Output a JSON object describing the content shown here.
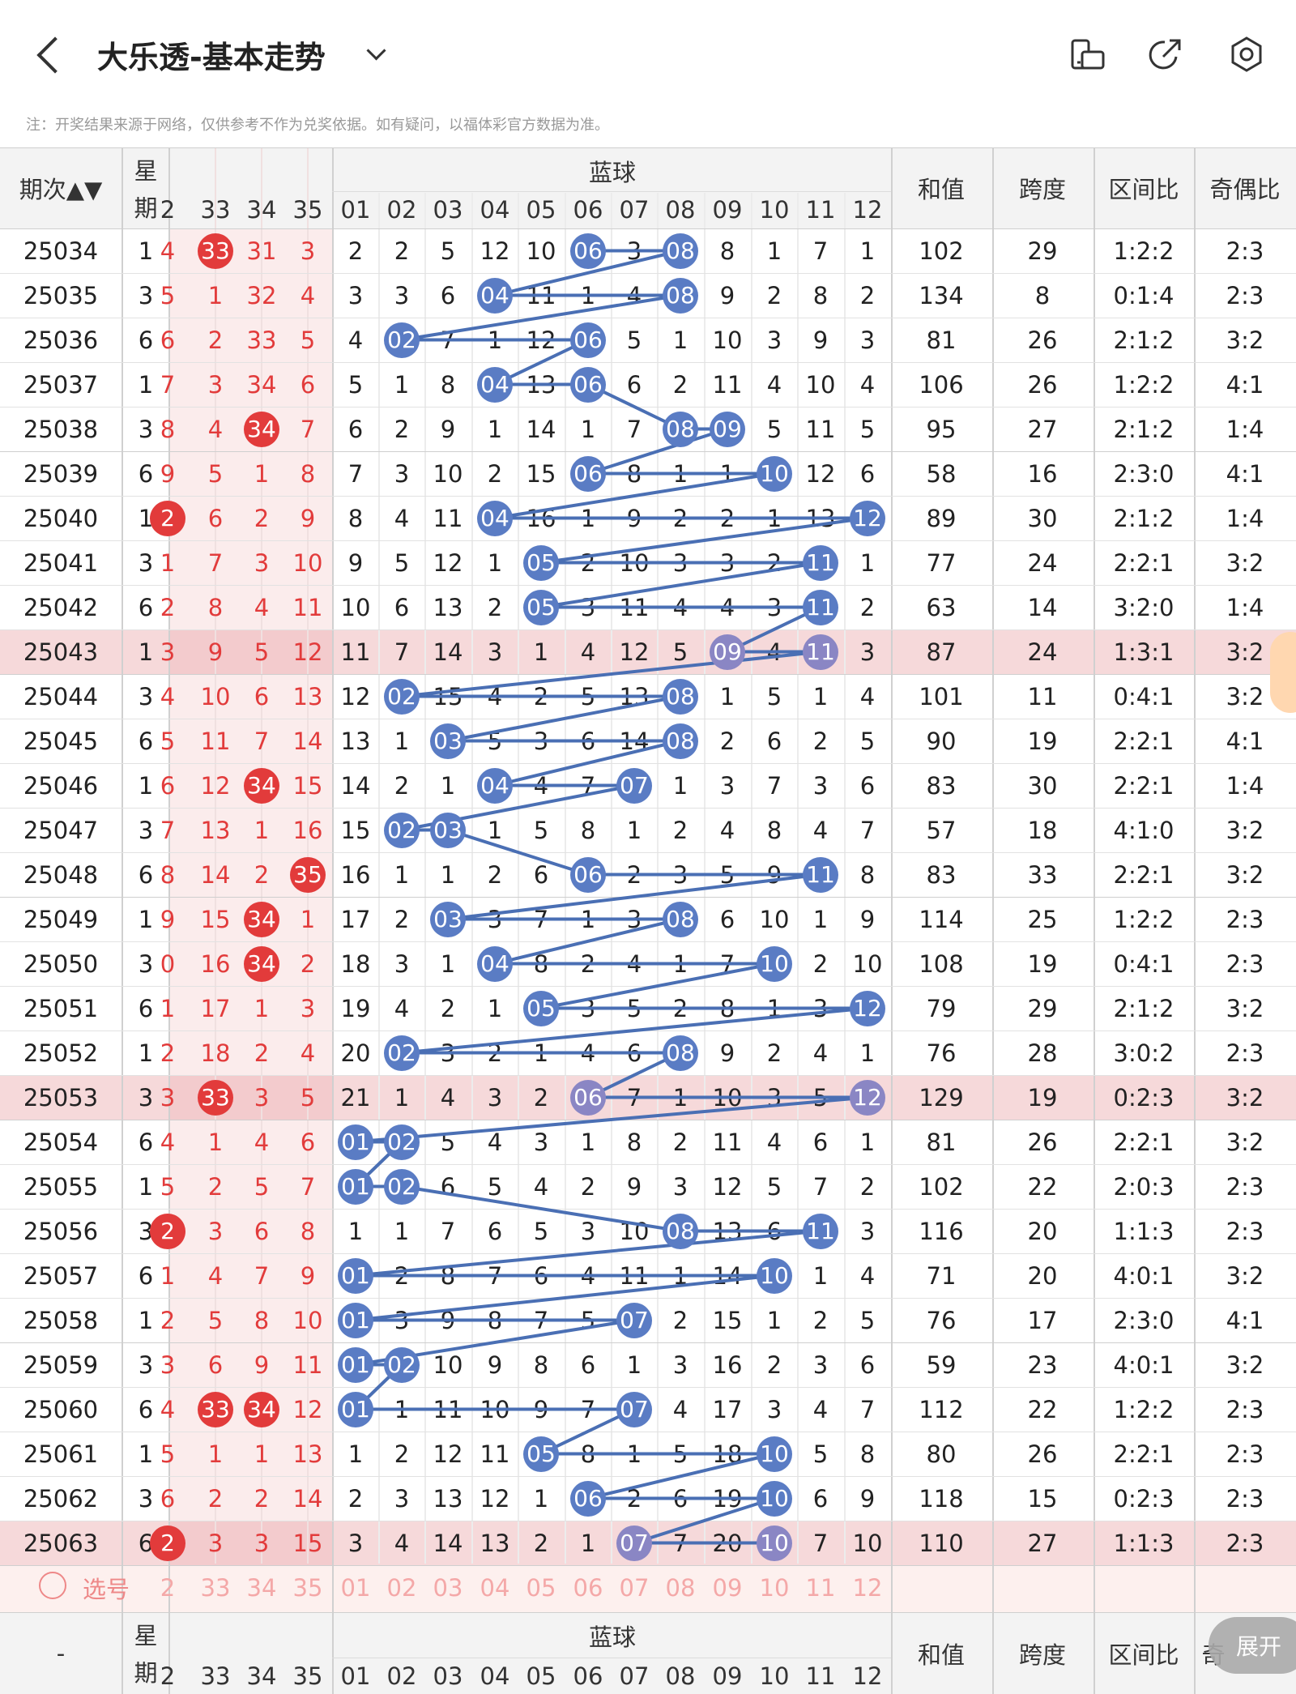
{
  "header": {
    "title": "大乐透-基本走势",
    "back_icon": "back-arrow-icon",
    "dropdown_icon": "chevron-down-icon",
    "icons": [
      "screen-rotate-icon",
      "share-icon",
      "settings-hexagon-icon"
    ]
  },
  "note": "注：开奖结果来源于网络，仅供参考不作为兑奖依据。如有疑问，以福体彩官方数据为准。",
  "table": {
    "col_period": "期次▲▼",
    "col_week_top": "星",
    "col_week_bottom": "期",
    "front_cols": [
      "2",
      "33",
      "34",
      "35"
    ],
    "blue_group": "蓝球",
    "blue_cols": [
      "01",
      "02",
      "03",
      "04",
      "05",
      "06",
      "07",
      "08",
      "09",
      "10",
      "11",
      "12"
    ],
    "stat_cols": [
      "和值",
      "跨度",
      "区间比",
      "奇偶比"
    ],
    "rows": [
      {
        "p": "25034",
        "w": "1",
        "f": [
          "4",
          "33",
          "31",
          "3"
        ],
        "fb": [
          1
        ],
        "b": [
          "2",
          "2",
          "5",
          "12",
          "10",
          "06",
          "3",
          "08",
          "8",
          "1",
          "7",
          "1"
        ],
        "bb": [
          6,
          8
        ],
        "s": [
          "102",
          "29",
          "1:2:2",
          "2:3"
        ],
        "hl": false
      },
      {
        "p": "25035",
        "w": "3",
        "f": [
          "5",
          "1",
          "32",
          "4"
        ],
        "fb": [],
        "b": [
          "3",
          "3",
          "6",
          "04",
          "11",
          "1",
          "4",
          "08",
          "9",
          "2",
          "8",
          "2"
        ],
        "bb": [
          4,
          8
        ],
        "s": [
          "134",
          "8",
          "0:1:4",
          "2:3"
        ],
        "hl": false
      },
      {
        "p": "25036",
        "w": "6",
        "f": [
          "6",
          "2",
          "33",
          "5"
        ],
        "fb": [],
        "b": [
          "4",
          "02",
          "7",
          "1",
          "12",
          "06",
          "5",
          "1",
          "10",
          "3",
          "9",
          "3"
        ],
        "bb": [
          2,
          6
        ],
        "s": [
          "81",
          "26",
          "2:1:2",
          "3:2"
        ],
        "hl": false
      },
      {
        "p": "25037",
        "w": "1",
        "f": [
          "7",
          "3",
          "34",
          "6"
        ],
        "fb": [],
        "b": [
          "5",
          "1",
          "8",
          "04",
          "13",
          "06",
          "6",
          "2",
          "11",
          "4",
          "10",
          "4"
        ],
        "bb": [
          4,
          6
        ],
        "s": [
          "106",
          "26",
          "1:2:2",
          "4:1"
        ],
        "hl": false
      },
      {
        "p": "25038",
        "w": "3",
        "f": [
          "8",
          "4",
          "34",
          "7"
        ],
        "fb": [
          2
        ],
        "b": [
          "6",
          "2",
          "9",
          "1",
          "14",
          "1",
          "7",
          "08",
          "09",
          "5",
          "11",
          "5"
        ],
        "bb": [
          8,
          9
        ],
        "s": [
          "95",
          "27",
          "2:1:2",
          "1:4"
        ],
        "hl": false
      },
      {
        "p": "25039",
        "w": "6",
        "f": [
          "9",
          "5",
          "1",
          "8"
        ],
        "fb": [],
        "b": [
          "7",
          "3",
          "10",
          "2",
          "15",
          "06",
          "8",
          "1",
          "1",
          "10",
          "12",
          "6"
        ],
        "bb": [
          6,
          10
        ],
        "s": [
          "58",
          "16",
          "2:3:0",
          "4:1"
        ],
        "hl": false
      },
      {
        "p": "25040",
        "w": "1",
        "f": [
          "2",
          "6",
          "2",
          "9"
        ],
        "fb": [
          0
        ],
        "b": [
          "8",
          "4",
          "11",
          "04",
          "16",
          "1",
          "9",
          "2",
          "2",
          "1",
          "13",
          "12"
        ],
        "bb": [
          4,
          12
        ],
        "s": [
          "89",
          "30",
          "2:1:2",
          "1:4"
        ],
        "hl": false
      },
      {
        "p": "25041",
        "w": "3",
        "f": [
          "1",
          "7",
          "3",
          "10"
        ],
        "fb": [],
        "b": [
          "9",
          "5",
          "12",
          "1",
          "05",
          "2",
          "10",
          "3",
          "3",
          "2",
          "11",
          "1"
        ],
        "bb": [
          5,
          11
        ],
        "s": [
          "77",
          "24",
          "2:2:1",
          "3:2"
        ],
        "hl": false
      },
      {
        "p": "25042",
        "w": "6",
        "f": [
          "2",
          "8",
          "4",
          "11"
        ],
        "fb": [],
        "b": [
          "10",
          "6",
          "13",
          "2",
          "05",
          "3",
          "11",
          "4",
          "4",
          "3",
          "11",
          "2"
        ],
        "bb": [
          5,
          11
        ],
        "s": [
          "63",
          "14",
          "3:2:0",
          "1:4"
        ],
        "hl": false
      },
      {
        "p": "25043",
        "w": "1",
        "f": [
          "3",
          "9",
          "5",
          "12"
        ],
        "fb": [],
        "b": [
          "11",
          "7",
          "14",
          "3",
          "1",
          "4",
          "12",
          "5",
          "09",
          "4",
          "11",
          "3"
        ],
        "bb": [
          9,
          11
        ],
        "s": [
          "87",
          "24",
          "1:3:1",
          "3:2"
        ],
        "hl": true
      },
      {
        "p": "25044",
        "w": "3",
        "f": [
          "4",
          "10",
          "6",
          "13"
        ],
        "fb": [],
        "b": [
          "12",
          "02",
          "15",
          "4",
          "2",
          "5",
          "13",
          "08",
          "1",
          "5",
          "1",
          "4"
        ],
        "bb": [
          2,
          8
        ],
        "s": [
          "101",
          "11",
          "0:4:1",
          "3:2"
        ],
        "hl": false
      },
      {
        "p": "25045",
        "w": "6",
        "f": [
          "5",
          "11",
          "7",
          "14"
        ],
        "fb": [],
        "b": [
          "13",
          "1",
          "03",
          "5",
          "3",
          "6",
          "14",
          "08",
          "2",
          "6",
          "2",
          "5"
        ],
        "bb": [
          3,
          8
        ],
        "s": [
          "90",
          "19",
          "2:2:1",
          "4:1"
        ],
        "hl": false
      },
      {
        "p": "25046",
        "w": "1",
        "f": [
          "6",
          "12",
          "34",
          "15"
        ],
        "fb": [
          2
        ],
        "b": [
          "14",
          "2",
          "1",
          "04",
          "4",
          "7",
          "07",
          "1",
          "3",
          "7",
          "3",
          "6"
        ],
        "bb": [
          4,
          7
        ],
        "s": [
          "83",
          "30",
          "2:2:1",
          "1:4"
        ],
        "hl": false
      },
      {
        "p": "25047",
        "w": "3",
        "f": [
          "7",
          "13",
          "1",
          "16"
        ],
        "fb": [],
        "b": [
          "15",
          "02",
          "03",
          "1",
          "5",
          "8",
          "1",
          "2",
          "4",
          "8",
          "4",
          "7"
        ],
        "bb": [
          2,
          3
        ],
        "s": [
          "57",
          "18",
          "4:1:0",
          "3:2"
        ],
        "hl": false
      },
      {
        "p": "25048",
        "w": "6",
        "f": [
          "8",
          "14",
          "2",
          "35"
        ],
        "fb": [
          3
        ],
        "b": [
          "16",
          "1",
          "1",
          "2",
          "6",
          "06",
          "2",
          "3",
          "5",
          "9",
          "11",
          "8"
        ],
        "bb": [
          6,
          11
        ],
        "s": [
          "83",
          "33",
          "2:2:1",
          "3:2"
        ],
        "hl": false
      },
      {
        "p": "25049",
        "w": "1",
        "f": [
          "9",
          "15",
          "34",
          "1"
        ],
        "fb": [
          2
        ],
        "b": [
          "17",
          "2",
          "03",
          "3",
          "7",
          "1",
          "3",
          "08",
          "6",
          "10",
          "1",
          "9"
        ],
        "bb": [
          3,
          8
        ],
        "s": [
          "114",
          "25",
          "1:2:2",
          "2:3"
        ],
        "hl": false
      },
      {
        "p": "25050",
        "w": "3",
        "f": [
          "0",
          "16",
          "34",
          "2"
        ],
        "fb": [
          2
        ],
        "b": [
          "18",
          "3",
          "1",
          "04",
          "8",
          "2",
          "4",
          "1",
          "7",
          "10",
          "2",
          "10"
        ],
        "bb": [
          4,
          10
        ],
        "s": [
          "108",
          "19",
          "0:4:1",
          "2:3"
        ],
        "hl": false
      },
      {
        "p": "25051",
        "w": "6",
        "f": [
          "1",
          "17",
          "1",
          "3"
        ],
        "fb": [],
        "b": [
          "19",
          "4",
          "2",
          "1",
          "05",
          "3",
          "5",
          "2",
          "8",
          "1",
          "3",
          "12"
        ],
        "bb": [
          5,
          12
        ],
        "s": [
          "79",
          "29",
          "2:1:2",
          "3:2"
        ],
        "hl": false
      },
      {
        "p": "25052",
        "w": "1",
        "f": [
          "2",
          "18",
          "2",
          "4"
        ],
        "fb": [],
        "b": [
          "20",
          "02",
          "3",
          "2",
          "1",
          "4",
          "6",
          "08",
          "9",
          "2",
          "4",
          "1"
        ],
        "bb": [
          2,
          8
        ],
        "s": [
          "76",
          "28",
          "3:0:2",
          "2:3"
        ],
        "hl": false
      },
      {
        "p": "25053",
        "w": "3",
        "f": [
          "3",
          "33",
          "3",
          "5"
        ],
        "fb": [
          1
        ],
        "b": [
          "21",
          "1",
          "4",
          "3",
          "2",
          "06",
          "7",
          "1",
          "10",
          "3",
          "5",
          "12"
        ],
        "bb": [
          6,
          12
        ],
        "s": [
          "129",
          "19",
          "0:2:3",
          "3:2"
        ],
        "hl": true
      },
      {
        "p": "25054",
        "w": "6",
        "f": [
          "4",
          "1",
          "4",
          "6"
        ],
        "fb": [],
        "b": [
          "01",
          "02",
          "5",
          "4",
          "3",
          "1",
          "8",
          "2",
          "11",
          "4",
          "6",
          "1"
        ],
        "bb": [
          1,
          2
        ],
        "s": [
          "81",
          "26",
          "2:2:1",
          "3:2"
        ],
        "hl": false
      },
      {
        "p": "25055",
        "w": "1",
        "f": [
          "5",
          "2",
          "5",
          "7"
        ],
        "fb": [],
        "b": [
          "01",
          "02",
          "6",
          "5",
          "4",
          "2",
          "9",
          "3",
          "12",
          "5",
          "7",
          "2"
        ],
        "bb": [
          1,
          2
        ],
        "s": [
          "102",
          "22",
          "2:0:3",
          "2:3"
        ],
        "hl": false
      },
      {
        "p": "25056",
        "w": "3",
        "f": [
          "2",
          "3",
          "6",
          "8"
        ],
        "fb": [
          0
        ],
        "b": [
          "1",
          "1",
          "7",
          "6",
          "5",
          "3",
          "10",
          "08",
          "13",
          "6",
          "11",
          "3"
        ],
        "bb": [
          8,
          11
        ],
        "s": [
          "116",
          "20",
          "1:1:3",
          "2:3"
        ],
        "hl": false
      },
      {
        "p": "25057",
        "w": "6",
        "f": [
          "1",
          "4",
          "7",
          "9"
        ],
        "fb": [],
        "b": [
          "01",
          "2",
          "8",
          "7",
          "6",
          "4",
          "11",
          "1",
          "14",
          "10",
          "1",
          "4"
        ],
        "bb": [
          1,
          10
        ],
        "s": [
          "71",
          "20",
          "4:0:1",
          "3:2"
        ],
        "hl": false
      },
      {
        "p": "25058",
        "w": "1",
        "f": [
          "2",
          "5",
          "8",
          "10"
        ],
        "fb": [],
        "b": [
          "01",
          "3",
          "9",
          "8",
          "7",
          "5",
          "07",
          "2",
          "15",
          "1",
          "2",
          "5"
        ],
        "bb": [
          1,
          7
        ],
        "s": [
          "76",
          "17",
          "2:3:0",
          "4:1"
        ],
        "hl": false
      },
      {
        "p": "25059",
        "w": "3",
        "f": [
          "3",
          "6",
          "9",
          "11"
        ],
        "fb": [],
        "b": [
          "01",
          "02",
          "10",
          "9",
          "8",
          "6",
          "1",
          "3",
          "16",
          "2",
          "3",
          "6"
        ],
        "bb": [
          1,
          2
        ],
        "s": [
          "59",
          "23",
          "4:0:1",
          "3:2"
        ],
        "hl": false
      },
      {
        "p": "25060",
        "w": "6",
        "f": [
          "4",
          "33",
          "34",
          "12"
        ],
        "fb": [
          1,
          2
        ],
        "b": [
          "01",
          "1",
          "11",
          "10",
          "9",
          "7",
          "07",
          "4",
          "17",
          "3",
          "4",
          "7"
        ],
        "bb": [
          1,
          7
        ],
        "s": [
          "112",
          "22",
          "1:2:2",
          "2:3"
        ],
        "hl": false
      },
      {
        "p": "25061",
        "w": "1",
        "f": [
          "5",
          "1",
          "1",
          "13"
        ],
        "fb": [],
        "b": [
          "1",
          "2",
          "12",
          "11",
          "05",
          "8",
          "1",
          "5",
          "18",
          "10",
          "5",
          "8"
        ],
        "bb": [
          5,
          10
        ],
        "s": [
          "80",
          "26",
          "2:2:1",
          "2:3"
        ],
        "hl": false
      },
      {
        "p": "25062",
        "w": "3",
        "f": [
          "6",
          "2",
          "2",
          "14"
        ],
        "fb": [],
        "b": [
          "2",
          "3",
          "13",
          "12",
          "1",
          "06",
          "2",
          "6",
          "19",
          "10",
          "6",
          "9"
        ],
        "bb": [
          6,
          10
        ],
        "s": [
          "118",
          "15",
          "0:2:3",
          "2:3"
        ],
        "hl": false
      },
      {
        "p": "25063",
        "w": "6",
        "f": [
          "2",
          "3",
          "3",
          "15"
        ],
        "fb": [
          0
        ],
        "b": [
          "3",
          "4",
          "14",
          "13",
          "2",
          "1",
          "07",
          "7",
          "20",
          "10",
          "7",
          "10"
        ],
        "bb": [
          7,
          10
        ],
        "s": [
          "110",
          "27",
          "1:1:3",
          "2:3"
        ],
        "hl": true
      }
    ],
    "select_label": "选号",
    "select_front": [
      "2",
      "33",
      "34",
      "35"
    ],
    "select_blue": [
      "01",
      "02",
      "03",
      "04",
      "05",
      "06",
      "07",
      "08",
      "09",
      "10",
      "11",
      "12"
    ],
    "footer_period": "-",
    "footer_stat_last": "奇",
    "expand_label": "展开"
  }
}
